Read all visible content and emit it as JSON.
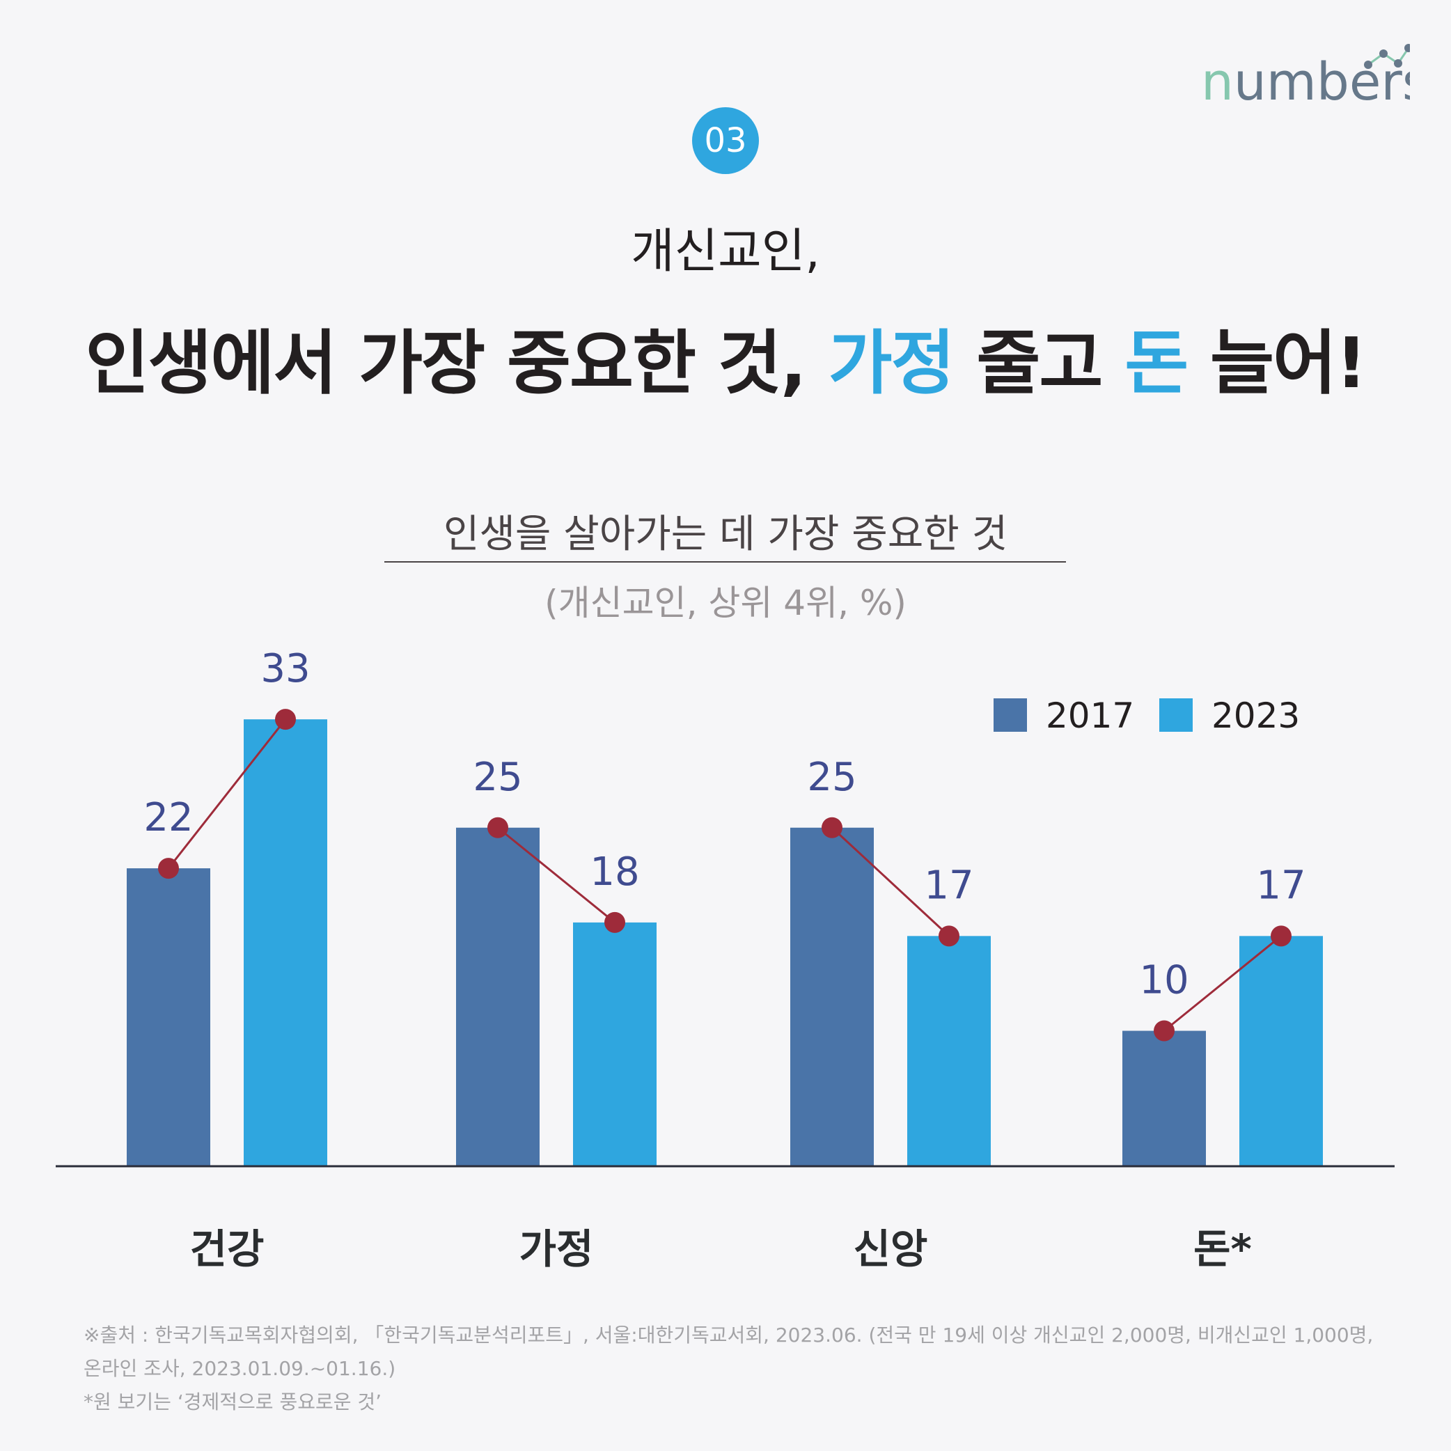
{
  "logo": "numbers",
  "badge": "03",
  "title_line1": "개신교인,",
  "title_line2": {
    "a": "인생에서 가장 중요한 것, ",
    "b": "가정",
    "c": " 줄고 ",
    "d": "돈",
    "e": " 늘어!"
  },
  "chart_data": {
    "type": "bar",
    "title": "인생을 살아가는 데 가장 중요한 것",
    "subtitle": "(개신교인, 상위 4위, %)",
    "categories": [
      "건강",
      "가정",
      "신앙",
      "돈*"
    ],
    "series": [
      {
        "name": "2017",
        "values": [
          22,
          25,
          25,
          10
        ],
        "color": "#4a74a8"
      },
      {
        "name": "2023",
        "values": [
          33,
          18,
          17,
          17
        ],
        "color": "#2fa6df"
      }
    ],
    "ylim": [
      0,
      36
    ],
    "legend": "top-right",
    "connector_color": "#9e2b3a",
    "label_color": "#3f4b8f"
  },
  "footnotes": [
    "※출처 : 한국기독교목회자협의회, 「한국기독교분석리포트」, 서울:대한기독교서회, 2023.06. (전국 만 19세 이상 개신교인 2,000명, 비개신교인 1,000명,",
    "온라인 조사, 2023.01.09.~01.16.)",
    "*원 보기는 ‘경제적으로 풍요로운 것’"
  ]
}
